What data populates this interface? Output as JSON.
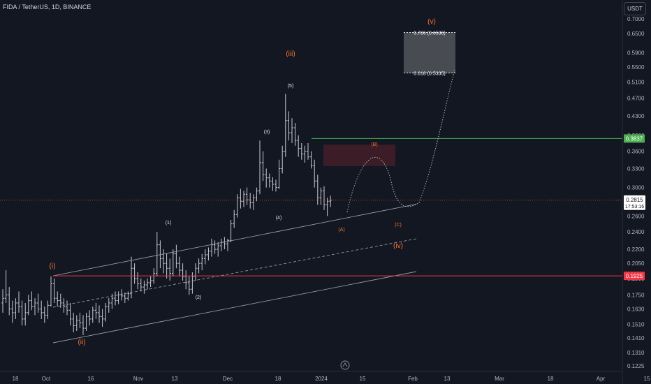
{
  "header": {
    "title": "FIDA / TetherUS, 1D, BINANCE"
  },
  "price_axis": {
    "unit_button": "USDT"
  },
  "colors": {
    "background": "#131722",
    "orange": "#f7742a",
    "white": "#e8e8e8",
    "green": "#4caf50",
    "red": "#f23645",
    "candle": "#c8cbd3"
  },
  "chart_data": {
    "type": "ohlc",
    "yscale": "log",
    "y_ticks": [
      "0.7000",
      "0.6500",
      "0.5900",
      "0.5500",
      "0.5100",
      "0.4700",
      "0.4300",
      "0.3900",
      "0.3600",
      "0.3300",
      "0.3000",
      "0.2600",
      "0.2400",
      "0.2200",
      "0.2050",
      "0.1900",
      "0.1750",
      "0.1630",
      "0.1510",
      "0.1410",
      "0.1310",
      "0.1225"
    ],
    "x_ticks": [
      "18",
      "Oct",
      "16",
      "Nov",
      "13",
      "Dec",
      "18",
      "2024",
      "15",
      "Feb",
      "13",
      "Mar",
      "18",
      "Apr",
      "15"
    ],
    "candles": [
      [
        0.168,
        0.18,
        0.16,
        0.172
      ],
      [
        0.172,
        0.198,
        0.168,
        0.175
      ],
      [
        0.175,
        0.182,
        0.158,
        0.163
      ],
      [
        0.163,
        0.17,
        0.152,
        0.16
      ],
      [
        0.16,
        0.172,
        0.155,
        0.168
      ],
      [
        0.168,
        0.178,
        0.16,
        0.165
      ],
      [
        0.165,
        0.17,
        0.15,
        0.155
      ],
      [
        0.155,
        0.168,
        0.15,
        0.16
      ],
      [
        0.16,
        0.175,
        0.158,
        0.17
      ],
      [
        0.17,
        0.178,
        0.162,
        0.165
      ],
      [
        0.165,
        0.172,
        0.158,
        0.168
      ],
      [
        0.168,
        0.176,
        0.16,
        0.163
      ],
      [
        0.163,
        0.17,
        0.155,
        0.16
      ],
      [
        0.16,
        0.165,
        0.152,
        0.158
      ],
      [
        0.158,
        0.17,
        0.155,
        0.166
      ],
      [
        0.166,
        0.192,
        0.165,
        0.185
      ],
      [
        0.185,
        0.19,
        0.168,
        0.172
      ],
      [
        0.172,
        0.178,
        0.165,
        0.17
      ],
      [
        0.17,
        0.176,
        0.164,
        0.168
      ],
      [
        0.168,
        0.172,
        0.16,
        0.165
      ],
      [
        0.165,
        0.17,
        0.158,
        0.162
      ],
      [
        0.162,
        0.168,
        0.15,
        0.155
      ],
      [
        0.155,
        0.16,
        0.145,
        0.15
      ],
      [
        0.15,
        0.158,
        0.146,
        0.154
      ],
      [
        0.154,
        0.16,
        0.148,
        0.152
      ],
      [
        0.152,
        0.158,
        0.143,
        0.148
      ],
      [
        0.148,
        0.16,
        0.146,
        0.157
      ],
      [
        0.157,
        0.162,
        0.15,
        0.155
      ],
      [
        0.155,
        0.165,
        0.152,
        0.162
      ],
      [
        0.162,
        0.168,
        0.155,
        0.16
      ],
      [
        0.16,
        0.166,
        0.152,
        0.157
      ],
      [
        0.157,
        0.163,
        0.149,
        0.155
      ],
      [
        0.155,
        0.168,
        0.153,
        0.165
      ],
      [
        0.165,
        0.172,
        0.16,
        0.168
      ],
      [
        0.168,
        0.176,
        0.163,
        0.172
      ],
      [
        0.172,
        0.178,
        0.166,
        0.17
      ],
      [
        0.17,
        0.178,
        0.167,
        0.175
      ],
      [
        0.175,
        0.18,
        0.17,
        0.174
      ],
      [
        0.174,
        0.177,
        0.168,
        0.172
      ],
      [
        0.172,
        0.178,
        0.17,
        0.176
      ],
      [
        0.176,
        0.212,
        0.172,
        0.2
      ],
      [
        0.2,
        0.205,
        0.185,
        0.19
      ],
      [
        0.19,
        0.196,
        0.18,
        0.185
      ],
      [
        0.185,
        0.19,
        0.178,
        0.182
      ],
      [
        0.182,
        0.188,
        0.176,
        0.184
      ],
      [
        0.184,
        0.19,
        0.18,
        0.186
      ],
      [
        0.186,
        0.192,
        0.182,
        0.188
      ],
      [
        0.188,
        0.2,
        0.185,
        0.195
      ],
      [
        0.195,
        0.24,
        0.192,
        0.225
      ],
      [
        0.225,
        0.23,
        0.2,
        0.21
      ],
      [
        0.21,
        0.22,
        0.195,
        0.205
      ],
      [
        0.205,
        0.215,
        0.19,
        0.2
      ],
      [
        0.2,
        0.21,
        0.188,
        0.195
      ],
      [
        0.195,
        0.22,
        0.192,
        0.215
      ],
      [
        0.215,
        0.225,
        0.2,
        0.205
      ],
      [
        0.205,
        0.212,
        0.192,
        0.198
      ],
      [
        0.198,
        0.205,
        0.188,
        0.192
      ],
      [
        0.192,
        0.198,
        0.18,
        0.186
      ],
      [
        0.186,
        0.192,
        0.175,
        0.18
      ],
      [
        0.18,
        0.196,
        0.176,
        0.192
      ],
      [
        0.192,
        0.205,
        0.188,
        0.2
      ],
      [
        0.2,
        0.21,
        0.195,
        0.205
      ],
      [
        0.205,
        0.215,
        0.198,
        0.21
      ],
      [
        0.21,
        0.22,
        0.204,
        0.214
      ],
      [
        0.214,
        0.222,
        0.208,
        0.218
      ],
      [
        0.218,
        0.232,
        0.212,
        0.225
      ],
      [
        0.225,
        0.23,
        0.215,
        0.22
      ],
      [
        0.22,
        0.228,
        0.212,
        0.224
      ],
      [
        0.224,
        0.232,
        0.218,
        0.228
      ],
      [
        0.228,
        0.234,
        0.22,
        0.226
      ],
      [
        0.226,
        0.232,
        0.218,
        0.23
      ],
      [
        0.23,
        0.255,
        0.228,
        0.25
      ],
      [
        0.25,
        0.268,
        0.245,
        0.262
      ],
      [
        0.262,
        0.29,
        0.258,
        0.285
      ],
      [
        0.285,
        0.298,
        0.27,
        0.28
      ],
      [
        0.28,
        0.295,
        0.272,
        0.29
      ],
      [
        0.29,
        0.3,
        0.275,
        0.282
      ],
      [
        0.282,
        0.292,
        0.27,
        0.278
      ],
      [
        0.278,
        0.29,
        0.268,
        0.285
      ],
      [
        0.285,
        0.3,
        0.28,
        0.295
      ],
      [
        0.295,
        0.38,
        0.29,
        0.34
      ],
      [
        0.34,
        0.36,
        0.31,
        0.32
      ],
      [
        0.32,
        0.33,
        0.3,
        0.315
      ],
      [
        0.315,
        0.322,
        0.3,
        0.31
      ],
      [
        0.31,
        0.316,
        0.295,
        0.305
      ],
      [
        0.305,
        0.312,
        0.294,
        0.3
      ],
      [
        0.3,
        0.345,
        0.298,
        0.33
      ],
      [
        0.33,
        0.37,
        0.322,
        0.36
      ],
      [
        0.36,
        0.48,
        0.35,
        0.42
      ],
      [
        0.42,
        0.44,
        0.38,
        0.395
      ],
      [
        0.395,
        0.425,
        0.375,
        0.405
      ],
      [
        0.405,
        0.415,
        0.37,
        0.38
      ],
      [
        0.38,
        0.39,
        0.35,
        0.365
      ],
      [
        0.365,
        0.375,
        0.345,
        0.355
      ],
      [
        0.355,
        0.37,
        0.34,
        0.36
      ],
      [
        0.36,
        0.375,
        0.345,
        0.35
      ],
      [
        0.35,
        0.36,
        0.33,
        0.335
      ],
      [
        0.335,
        0.345,
        0.3,
        0.31
      ],
      [
        0.31,
        0.32,
        0.275,
        0.285
      ],
      [
        0.285,
        0.3,
        0.275,
        0.295
      ],
      [
        0.295,
        0.302,
        0.268,
        0.275
      ],
      [
        0.275,
        0.285,
        0.26,
        0.28
      ],
      [
        0.28,
        0.288,
        0.272,
        0.2815
      ]
    ],
    "horizontal_lines": [
      {
        "label": "0.3837",
        "value": 0.3837,
        "color": "#4caf50"
      },
      {
        "label": "0.1925",
        "value": 0.1925,
        "color": "#f23645"
      }
    ],
    "last_price": {
      "value": "0.2815",
      "countdown": "17:53:16"
    },
    "target_box": {
      "top_label": "0.786 (0.6536)",
      "bottom_label": "0.618 (0.5335)",
      "top": 0.6536,
      "bottom": 0.5335
    },
    "wave_labels": [
      {
        "text": "(i)",
        "color": "orange"
      },
      {
        "text": "(ii)",
        "color": "orange"
      },
      {
        "text": "(iii)",
        "color": "orange"
      },
      {
        "text": "(iv)",
        "color": "orange"
      },
      {
        "text": "(v)",
        "color": "orange"
      },
      {
        "text": "(1)",
        "color": "white"
      },
      {
        "text": "(2)",
        "color": "white"
      },
      {
        "text": "(3)",
        "color": "white"
      },
      {
        "text": "(4)",
        "color": "white"
      },
      {
        "text": "(5)",
        "color": "white"
      },
      {
        "text": "(A)",
        "color": "orange"
      },
      {
        "text": "(B)",
        "color": "orange"
      },
      {
        "text": "(C)",
        "color": "orange"
      }
    ]
  }
}
